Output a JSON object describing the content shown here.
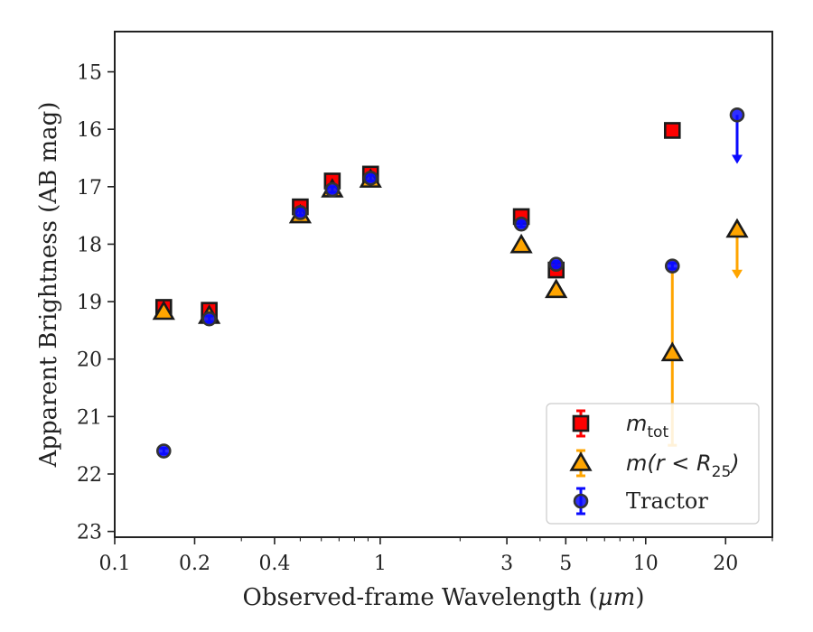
{
  "chart_data": {
    "type": "scatter",
    "xlabel_prefix": "Observed-frame Wavelength (",
    "xlabel_unit": "μm",
    "xlabel_suffix": ")",
    "ylabel": "Apparent Brightness (AB mag)",
    "xscale": "log",
    "yscale": "linear",
    "y_inverted": true,
    "xlim": [
      0.1,
      30
    ],
    "ylim": [
      23.1,
      14.3
    ],
    "xticks": [
      {
        "value": 0.1,
        "label": "0.1"
      },
      {
        "value": 0.2,
        "label": "0.2"
      },
      {
        "value": 0.4,
        "label": "0.4"
      },
      {
        "value": 1,
        "label": "1"
      },
      {
        "value": 3,
        "label": "3"
      },
      {
        "value": 5,
        "label": "5"
      },
      {
        "value": 10,
        "label": "10"
      },
      {
        "value": 20,
        "label": "20"
      }
    ],
    "yticks": [
      {
        "value": 15,
        "label": "15"
      },
      {
        "value": 16,
        "label": "16"
      },
      {
        "value": 17,
        "label": "17"
      },
      {
        "value": 18,
        "label": "18"
      },
      {
        "value": 19,
        "label": "19"
      },
      {
        "value": 20,
        "label": "20"
      },
      {
        "value": 21,
        "label": "21"
      },
      {
        "value": 22,
        "label": "22"
      },
      {
        "value": 23,
        "label": "23"
      }
    ],
    "legend_position": "lower right",
    "series": [
      {
        "name": "m_tot",
        "legend_main": "m",
        "legend_sub": "tot",
        "marker": "square",
        "color": "#ff0000",
        "edge": "#1a1a1a",
        "points": [
          {
            "x": 0.153,
            "y": 19.1,
            "err": 0.05
          },
          {
            "x": 0.227,
            "y": 19.15,
            "err": 0.05
          },
          {
            "x": 0.5,
            "y": 17.35,
            "err": 0.05
          },
          {
            "x": 0.66,
            "y": 16.9,
            "err": 0.05
          },
          {
            "x": 0.92,
            "y": 16.78,
            "err": 0.05
          },
          {
            "x": 3.4,
            "y": 17.52,
            "err": 0.05
          },
          {
            "x": 4.6,
            "y": 18.45,
            "err": 0.05
          },
          {
            "x": 12.6,
            "y": 16.02,
            "err": 0.05
          }
        ]
      },
      {
        "name": "m(r < R25)",
        "legend_main": "m(r < R",
        "legend_sub": "25",
        "legend_close": ")",
        "marker": "triangle",
        "color": "#ffa500",
        "edge": "#1a1a1a",
        "points": [
          {
            "x": 0.153,
            "y": 19.18,
            "err": 0.05
          },
          {
            "x": 0.227,
            "y": 19.25,
            "err": 0.05
          },
          {
            "x": 0.5,
            "y": 17.5,
            "err": 0.05
          },
          {
            "x": 0.66,
            "y": 17.05,
            "err": 0.05
          },
          {
            "x": 0.92,
            "y": 16.88,
            "err": 0.05
          },
          {
            "x": 3.4,
            "y": 18.02,
            "err": 0.05
          },
          {
            "x": 4.6,
            "y": 18.8,
            "err": 0.05
          },
          {
            "x": 12.6,
            "y": 19.9,
            "err": 1.6
          },
          {
            "x": 22.1,
            "y": 17.75,
            "upper_limit": true
          }
        ]
      },
      {
        "name": "Tractor",
        "legend_main": "Tractor",
        "marker": "circle",
        "color": "#0a0aff",
        "edge": "#333333",
        "points": [
          {
            "x": 0.153,
            "y": 21.6,
            "err": 0.05
          },
          {
            "x": 0.227,
            "y": 19.3,
            "err": 0.05
          },
          {
            "x": 0.5,
            "y": 17.45,
            "err": 0.05
          },
          {
            "x": 0.66,
            "y": 17.05,
            "err": 0.05
          },
          {
            "x": 0.92,
            "y": 16.85,
            "err": 0.05
          },
          {
            "x": 3.4,
            "y": 17.65,
            "err": 0.05
          },
          {
            "x": 4.6,
            "y": 18.35,
            "err": 0.05
          },
          {
            "x": 12.6,
            "y": 18.38,
            "err": 0.05
          },
          {
            "x": 22.1,
            "y": 15.75,
            "upper_limit": true
          }
        ]
      }
    ]
  }
}
